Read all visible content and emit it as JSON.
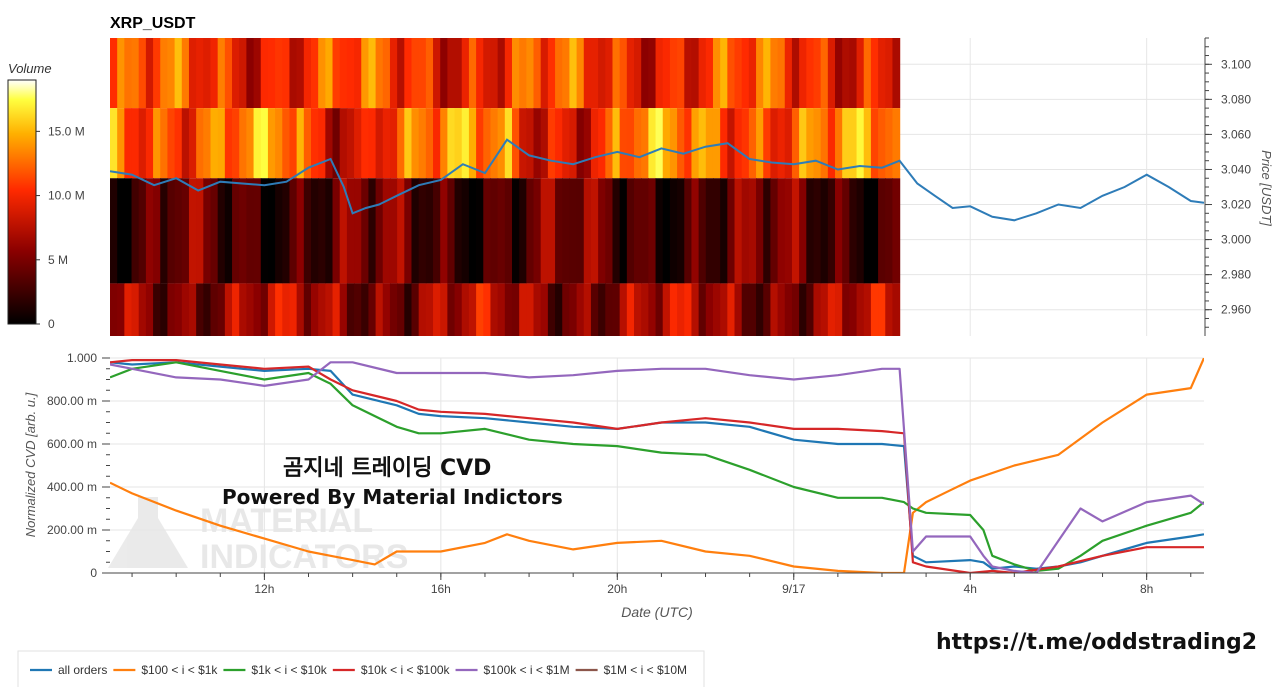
{
  "chart_data": [
    {
      "type": "heatmap",
      "title": "XRP_USDT",
      "colorbar": {
        "label": "Volume",
        "ticks": [
          "0",
          "5 M",
          "10.0 M",
          "15.0 M"
        ],
        "tick_values": [
          0,
          5,
          10,
          15
        ],
        "range": [
          0,
          19
        ]
      },
      "y_axis": {
        "label": "Price [USDT]",
        "ticks": [
          "2.960",
          "2.980",
          "3.000",
          "3.020",
          "3.040",
          "3.060",
          "3.080",
          "3.100"
        ],
        "tick_values": [
          2.96,
          2.98,
          3.0,
          3.02,
          3.04,
          3.06,
          3.08,
          3.1
        ],
        "range": [
          2.945,
          3.115
        ]
      },
      "x_range_hours": [
        8.5,
        33.3
      ],
      "heatmap_end_hour": 26.4,
      "price_bands": [
        [
          3.075,
          3.115
        ],
        [
          3.035,
          3.075
        ],
        [
          2.975,
          3.035
        ],
        [
          2.945,
          2.975
        ]
      ],
      "band_base_volume_M": [
        10.5,
        12.6,
        3.6,
        6.2
      ],
      "price_series": {
        "name": "XRP price",
        "x_hours": [
          8.5,
          9.0,
          9.5,
          10.0,
          10.5,
          11.0,
          11.5,
          12.0,
          12.5,
          13.0,
          13.5,
          13.8,
          14.0,
          14.3,
          14.6,
          15.0,
          15.5,
          16.0,
          16.5,
          17.0,
          17.5,
          18.0,
          18.5,
          19.0,
          19.5,
          20.0,
          20.5,
          21.0,
          21.5,
          22.0,
          22.5,
          23.0,
          23.5,
          24.0,
          24.5,
          25.0,
          25.5,
          26.0,
          26.4,
          26.8,
          27.2,
          27.6,
          28.0,
          28.5,
          29.0,
          29.5,
          30.0,
          30.5,
          31.0,
          31.5,
          32.0,
          32.5,
          33.0,
          33.3
        ],
        "values": [
          3.039,
          3.037,
          3.031,
          3.035,
          3.028,
          3.033,
          3.032,
          3.031,
          3.033,
          3.041,
          3.046,
          3.03,
          3.015,
          3.018,
          3.02,
          3.025,
          3.031,
          3.034,
          3.043,
          3.038,
          3.057,
          3.048,
          3.045,
          3.043,
          3.047,
          3.05,
          3.047,
          3.052,
          3.049,
          3.053,
          3.055,
          3.046,
          3.044,
          3.043,
          3.045,
          3.04,
          3.042,
          3.041,
          3.045,
          3.032,
          3.025,
          3.018,
          3.019,
          3.013,
          3.011,
          3.015,
          3.02,
          3.018,
          3.025,
          3.03,
          3.037,
          3.03,
          3.022,
          3.021
        ]
      }
    },
    {
      "type": "line",
      "ylabel": "Normalized CVD [arb. u.]",
      "xlabel": "Date (UTC)",
      "x_ticks": [
        "12h",
        "16h",
        "20h",
        "9/17",
        "4h",
        "8h"
      ],
      "x_tick_hours": [
        12,
        16,
        20,
        24,
        28,
        32
      ],
      "y_ticks": [
        "0",
        "200.00 m",
        "400.00 m",
        "600.00 m",
        "800.00 m",
        "1.000"
      ],
      "y_tick_values": [
        0,
        0.2,
        0.4,
        0.6,
        0.8,
        1.0
      ],
      "ylim": [
        0,
        1.0
      ],
      "x_range_hours": [
        8.5,
        33.3
      ],
      "series": [
        {
          "name": "all orders",
          "color": "#1f77b4",
          "x": [
            8.5,
            9.0,
            10.0,
            11.0,
            12.0,
            13.0,
            13.5,
            14.0,
            15.0,
            15.5,
            16.0,
            17.0,
            18.0,
            19.0,
            20.0,
            21.0,
            22.0,
            23.0,
            24.0,
            25.0,
            26.0,
            26.5,
            26.7,
            27.0,
            28.0,
            28.3,
            28.5,
            29.0,
            29.5,
            30.0,
            30.5,
            31.0,
            32.0,
            33.0,
            33.3
          ],
          "values": [
            0.98,
            0.97,
            0.98,
            0.96,
            0.94,
            0.95,
            0.94,
            0.83,
            0.78,
            0.74,
            0.73,
            0.72,
            0.7,
            0.68,
            0.67,
            0.7,
            0.7,
            0.68,
            0.62,
            0.6,
            0.6,
            0.59,
            0.08,
            0.05,
            0.06,
            0.05,
            0.02,
            0.03,
            0.02,
            0.03,
            0.05,
            0.08,
            0.14,
            0.17,
            0.18
          ]
        },
        {
          "name": "$100 < i < $1k",
          "color": "#ff7f0e",
          "x": [
            8.5,
            9.0,
            10.0,
            11.0,
            12.0,
            13.0,
            13.5,
            14.0,
            14.5,
            15.0,
            16.0,
            17.0,
            17.5,
            18.0,
            19.0,
            20.0,
            21.0,
            22.0,
            23.0,
            24.0,
            25.0,
            26.0,
            26.5,
            26.7,
            27.0,
            27.5,
            28.0,
            29.0,
            30.0,
            31.0,
            32.0,
            33.0,
            33.3
          ],
          "values": [
            0.42,
            0.37,
            0.29,
            0.22,
            0.16,
            0.1,
            0.08,
            0.06,
            0.04,
            0.1,
            0.1,
            0.14,
            0.18,
            0.15,
            0.11,
            0.14,
            0.15,
            0.1,
            0.08,
            0.03,
            0.01,
            0.0,
            0.0,
            0.28,
            0.33,
            0.38,
            0.43,
            0.5,
            0.55,
            0.7,
            0.83,
            0.86,
            1.0
          ]
        },
        {
          "name": "$1k < i < $10k",
          "color": "#2ca02c",
          "x": [
            8.5,
            9.0,
            10.0,
            11.0,
            12.0,
            13.0,
            13.5,
            14.0,
            15.0,
            15.5,
            16.0,
            17.0,
            18.0,
            19.0,
            20.0,
            21.0,
            22.0,
            23.0,
            24.0,
            25.0,
            26.0,
            26.5,
            26.7,
            27.0,
            28.0,
            28.3,
            28.5,
            29.0,
            29.5,
            30.0,
            30.5,
            31.0,
            32.0,
            33.0,
            33.3
          ],
          "values": [
            0.91,
            0.95,
            0.98,
            0.94,
            0.9,
            0.93,
            0.88,
            0.78,
            0.68,
            0.65,
            0.65,
            0.67,
            0.62,
            0.6,
            0.59,
            0.56,
            0.55,
            0.48,
            0.4,
            0.35,
            0.35,
            0.33,
            0.3,
            0.28,
            0.27,
            0.2,
            0.08,
            0.04,
            0.01,
            0.02,
            0.08,
            0.15,
            0.22,
            0.28,
            0.33
          ]
        },
        {
          "name": "$10k < i < $100k",
          "color": "#d62728",
          "x": [
            8.5,
            9.0,
            10.0,
            11.0,
            12.0,
            13.0,
            13.5,
            14.0,
            15.0,
            15.5,
            16.0,
            17.0,
            18.0,
            19.0,
            20.0,
            21.0,
            22.0,
            23.0,
            24.0,
            25.0,
            26.0,
            26.5,
            26.7,
            27.0,
            28.0,
            28.5,
            29.0,
            30.0,
            31.0,
            32.0,
            33.0,
            33.3
          ],
          "values": [
            0.98,
            0.99,
            0.99,
            0.97,
            0.95,
            0.96,
            0.9,
            0.85,
            0.8,
            0.76,
            0.75,
            0.74,
            0.72,
            0.7,
            0.67,
            0.7,
            0.72,
            0.7,
            0.67,
            0.67,
            0.66,
            0.65,
            0.05,
            0.03,
            0.0,
            0.01,
            0.0,
            0.03,
            0.08,
            0.12,
            0.12,
            0.12
          ]
        },
        {
          "name": "$100k < i < $1M",
          "color": "#9467bd",
          "x": [
            8.5,
            9.0,
            10.0,
            11.0,
            12.0,
            13.0,
            13.5,
            14.0,
            15.0,
            16.0,
            17.0,
            18.0,
            19.0,
            20.0,
            21.0,
            22.0,
            23.0,
            24.0,
            25.0,
            26.0,
            26.4,
            26.7,
            27.0,
            28.0,
            28.3,
            28.5,
            29.0,
            29.5,
            30.0,
            30.5,
            31.0,
            32.0,
            33.0,
            33.3
          ],
          "values": [
            0.97,
            0.95,
            0.91,
            0.9,
            0.87,
            0.9,
            0.98,
            0.98,
            0.93,
            0.93,
            0.93,
            0.91,
            0.92,
            0.94,
            0.95,
            0.95,
            0.92,
            0.9,
            0.92,
            0.95,
            0.95,
            0.1,
            0.17,
            0.17,
            0.08,
            0.03,
            0.01,
            0.0,
            0.15,
            0.3,
            0.24,
            0.33,
            0.36,
            0.32
          ]
        },
        {
          "name": "$1M < i < $10M",
          "color": "#8c564b",
          "x": [],
          "values": []
        }
      ]
    }
  ],
  "overlay": {
    "korean_title": "곰지네 트레이딩 CVD",
    "powered_by": "Powered By Material Indictors",
    "watermark_line1": "MATERIAL",
    "watermark_line2": "INDICATORS",
    "telegram_link": "https://t.me/oddstrading2"
  }
}
